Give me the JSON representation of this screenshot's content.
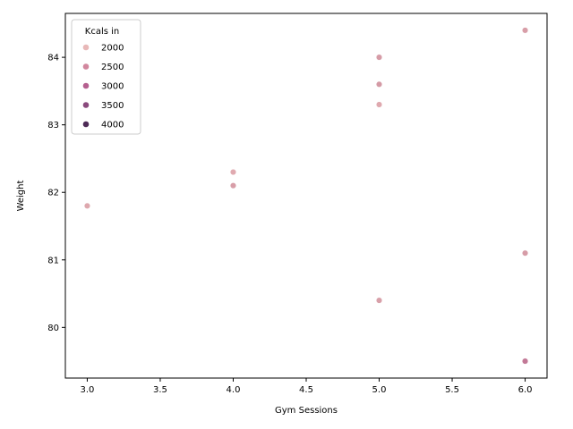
{
  "chart_data": {
    "type": "scatter",
    "title": "",
    "xlabel": "Gym Sessions",
    "ylabel": "Weight",
    "xlim": [
      2.85,
      6.15
    ],
    "ylim": [
      79.25,
      84.65
    ],
    "x_ticks": [
      3.0,
      3.5,
      4.0,
      4.5,
      5.0,
      5.5,
      6.0
    ],
    "y_ticks": [
      80,
      81,
      82,
      83,
      84
    ],
    "x_tick_labels": [
      "3.0",
      "3.5",
      "4.0",
      "4.5",
      "5.0",
      "5.5",
      "6.0"
    ],
    "y_tick_labels": [
      "80",
      "81",
      "82",
      "83",
      "84"
    ],
    "grid": false,
    "legend": {
      "title": "Kcals in",
      "placement": "top-left",
      "entries": [
        {
          "label": "2000",
          "color": "#e8b8b8"
        },
        {
          "label": "2500",
          "color": "#d2879e"
        },
        {
          "label": "3000",
          "color": "#b5608f"
        },
        {
          "label": "3500",
          "color": "#8a4a7d"
        },
        {
          "label": "4000",
          "color": "#4d2a56"
        }
      ]
    },
    "points": [
      {
        "x": 3.0,
        "y": 81.8,
        "color": "#dea8ae"
      },
      {
        "x": 4.0,
        "y": 82.3,
        "color": "#e0aab0"
      },
      {
        "x": 4.0,
        "y": 82.1,
        "color": "#d89ea8"
      },
      {
        "x": 5.0,
        "y": 84.0,
        "color": "#d69ca7"
      },
      {
        "x": 5.0,
        "y": 83.6,
        "color": "#d49aa5"
      },
      {
        "x": 5.0,
        "y": 83.3,
        "color": "#dfa9af"
      },
      {
        "x": 5.0,
        "y": 80.4,
        "color": "#d8a0a9"
      },
      {
        "x": 6.0,
        "y": 84.4,
        "color": "#d89ea8"
      },
      {
        "x": 6.0,
        "y": 81.1,
        "color": "#d69ca7"
      },
      {
        "x": 6.0,
        "y": 79.5,
        "color": "#c27896"
      }
    ]
  }
}
